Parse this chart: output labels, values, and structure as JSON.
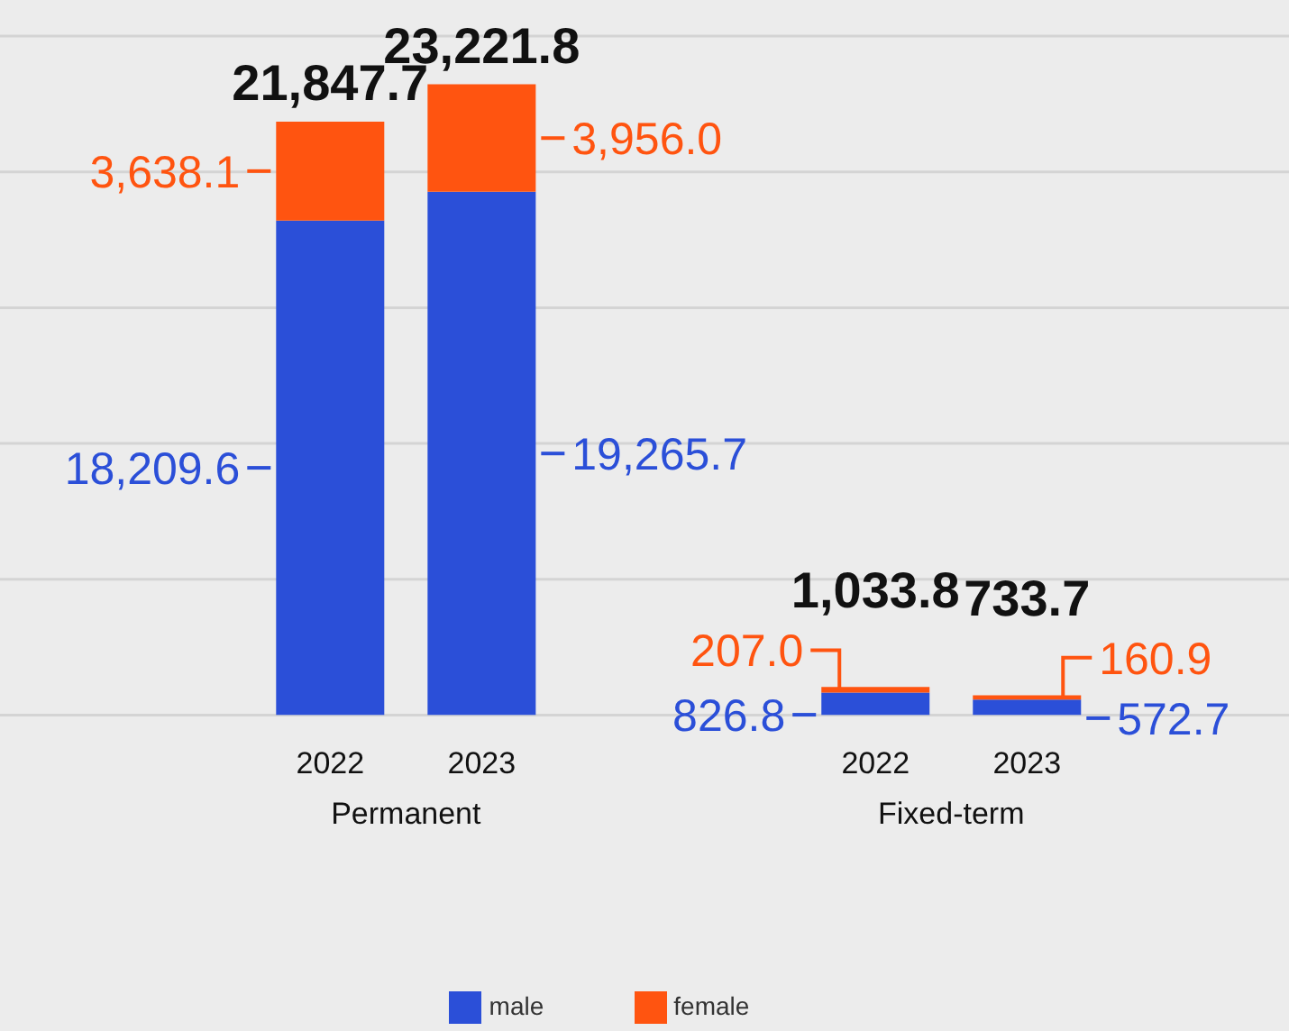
{
  "chart_data": {
    "type": "bar",
    "stacked": true,
    "categories": [
      "2022",
      "2023",
      "2022",
      "2023"
    ],
    "series": [
      {
        "name": "male",
        "color": "#2b4fd8",
        "values": [
          18209.6,
          19265.7,
          826.8,
          572.7
        ],
        "value_labels": [
          "18,209.6",
          "19,265.7",
          "826.8",
          "572.7"
        ]
      },
      {
        "name": "female",
        "color": "#ff5410",
        "values": [
          3638.1,
          3956.0,
          207.0,
          160.9
        ],
        "value_labels": [
          "3,638.1",
          "3,956.0",
          "207.0",
          "160.9"
        ]
      }
    ],
    "totals": [
      "21,847.7",
      "23,221.8",
      "1,033.8",
      "733.7"
    ],
    "annotations": [
      "Permanent",
      "Fixed-term"
    ],
    "ylim": [
      0,
      25000
    ],
    "yticks": [
      {
        "value": 0,
        "label": null
      },
      {
        "value": 5000,
        "label": null
      },
      {
        "value": 10000,
        "label": null
      },
      {
        "value": 15000,
        "label": null
      },
      {
        "value": 20000,
        "label": null
      },
      {
        "value": 25000,
        "label": null
      }
    ],
    "grid": "y",
    "legend": "bottom",
    "tick_labels": "x"
  }
}
